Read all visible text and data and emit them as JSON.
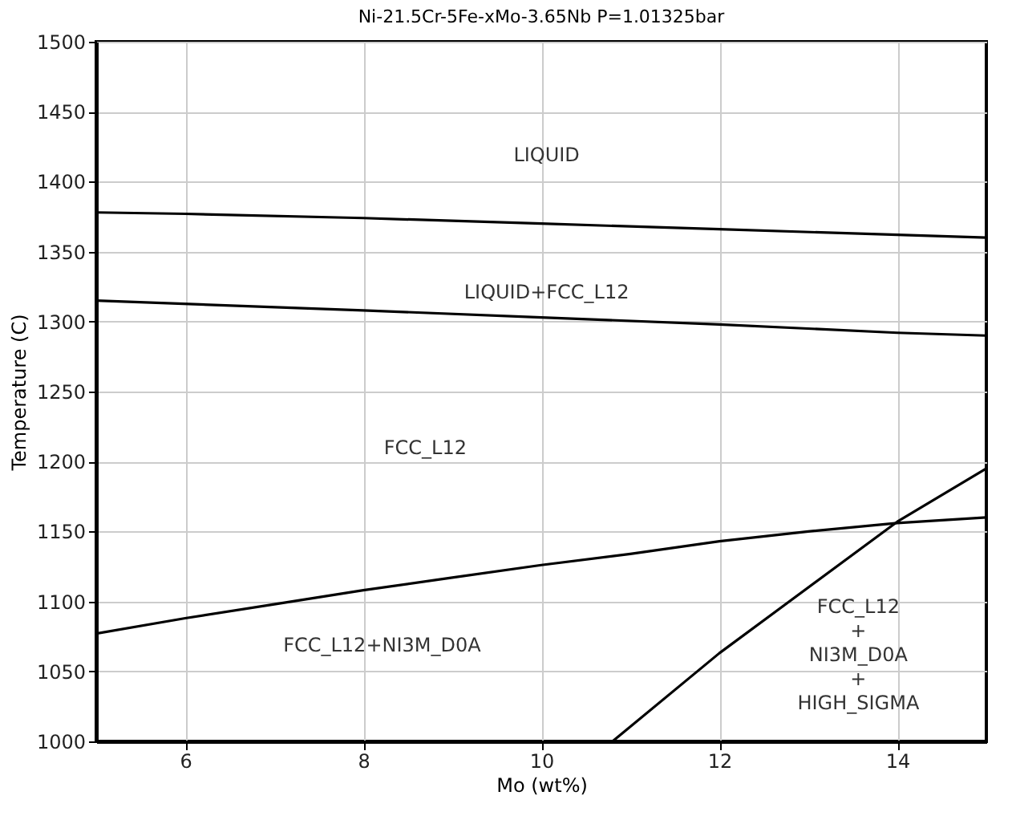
{
  "chart_data": {
    "type": "line",
    "title": "Ni-21.5Cr-5Fe-xMo-3.65Nb P=1.01325bar",
    "xlabel": "Mo (wt%)",
    "ylabel": "Temperature (C)",
    "xlim": [
      5,
      15
    ],
    "xticks": [
      6,
      8,
      10,
      12,
      14
    ],
    "ylim": [
      1000,
      1500
    ],
    "yticks": [
      1000,
      1050,
      1100,
      1150,
      1200,
      1250,
      1300,
      1350,
      1400,
      1450,
      1500
    ],
    "grid": true,
    "marker": "none",
    "line_style": "solid",
    "series": [
      {
        "color": "#000000",
        "x": [
          5,
          6,
          8,
          10,
          12,
          14,
          15
        ],
        "values": [
          1378,
          1377,
          1374,
          1370,
          1366,
          1362,
          1360
        ]
      },
      {
        "color": "#000000",
        "x": [
          5,
          8,
          10,
          12,
          14,
          15
        ],
        "values": [
          1315,
          1308,
          1303,
          1298,
          1292,
          1290
        ]
      },
      {
        "color": "#000000",
        "x": [
          5,
          6,
          7,
          8,
          9,
          10,
          11,
          12,
          13,
          14,
          15
        ],
        "values": [
          1077,
          1088,
          1098,
          1108,
          1117,
          1126,
          1134,
          1143,
          1150,
          1156,
          1160
        ]
      },
      {
        "color": "#000000",
        "x": [
          10.8,
          12,
          14,
          15
        ],
        "values": [
          1000,
          1063,
          1157,
          1195
        ]
      }
    ],
    "annotations": [
      "LIQUID",
      "LIQUID+FCC_L12",
      "FCC_L12",
      "FCC_L12+NI3M_D0A",
      "FCC_L12\n+\nNI3M_D0A\n+\nHIGH_SIGMA"
    ]
  }
}
